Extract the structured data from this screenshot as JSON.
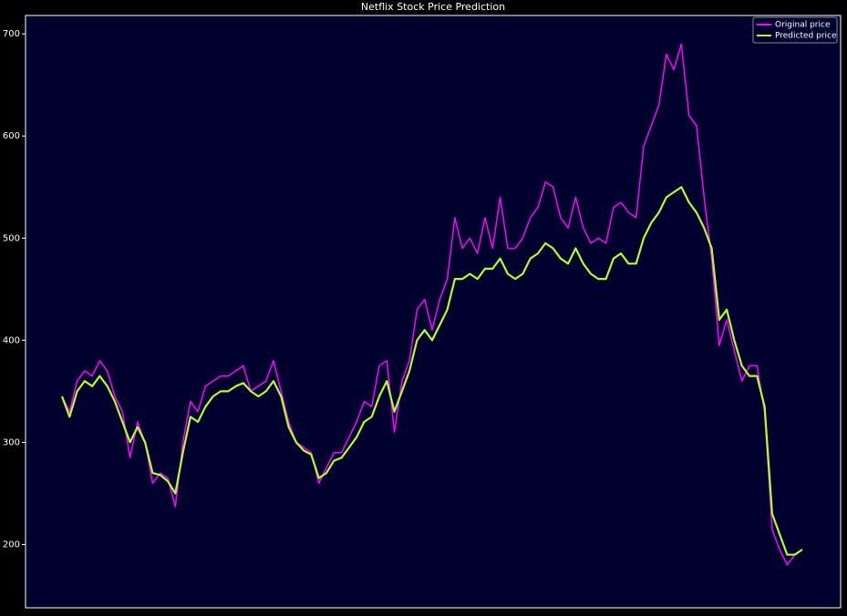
{
  "chart_data": {
    "type": "line",
    "title": "Netflix Stock Price Prediction",
    "ylim": [
      138,
      718
    ],
    "yticks": [
      200,
      300,
      400,
      500,
      600,
      700
    ],
    "grid": false,
    "legend": "upper right",
    "series": [
      {
        "name": "Original price",
        "color": "#ff00ff",
        "values": [
          345,
          330,
          360,
          370,
          365,
          380,
          370,
          345,
          330,
          285,
          320,
          300,
          260,
          270,
          265,
          237,
          300,
          340,
          330,
          355,
          360,
          365,
          365,
          370,
          375,
          350,
          355,
          360,
          380,
          350,
          320,
          300,
          295,
          290,
          260,
          275,
          290,
          290,
          305,
          320,
          340,
          335,
          375,
          380,
          310,
          360,
          380,
          430,
          440,
          410,
          440,
          460,
          520,
          490,
          500,
          485,
          520,
          490,
          540,
          490,
          490,
          500,
          520,
          530,
          555,
          550,
          520,
          510,
          540,
          510,
          495,
          500,
          495,
          530,
          535,
          525,
          520,
          590,
          610,
          630,
          680,
          665,
          690,
          620,
          610,
          540,
          480,
          395,
          420,
          390,
          360,
          375,
          375,
          330,
          215,
          195,
          180,
          190,
          195
        ]
      },
      {
        "name": "Predicted price",
        "color": "#adff2f",
        "values": [
          345,
          325,
          350,
          360,
          355,
          365,
          355,
          340,
          320,
          300,
          315,
          300,
          270,
          268,
          262,
          250,
          290,
          325,
          320,
          335,
          345,
          350,
          350,
          355,
          358,
          350,
          345,
          350,
          360,
          345,
          315,
          300,
          292,
          288,
          265,
          270,
          282,
          285,
          295,
          305,
          320,
          325,
          345,
          360,
          330,
          350,
          370,
          400,
          410,
          400,
          415,
          430,
          460,
          460,
          465,
          460,
          470,
          470,
          480,
          465,
          460,
          465,
          480,
          485,
          495,
          490,
          480,
          475,
          490,
          475,
          465,
          460,
          460,
          480,
          485,
          475,
          475,
          500,
          515,
          525,
          540,
          545,
          550,
          535,
          525,
          510,
          490,
          420,
          430,
          400,
          375,
          365,
          365,
          335,
          230,
          210,
          190,
          190,
          195
        ]
      }
    ]
  }
}
